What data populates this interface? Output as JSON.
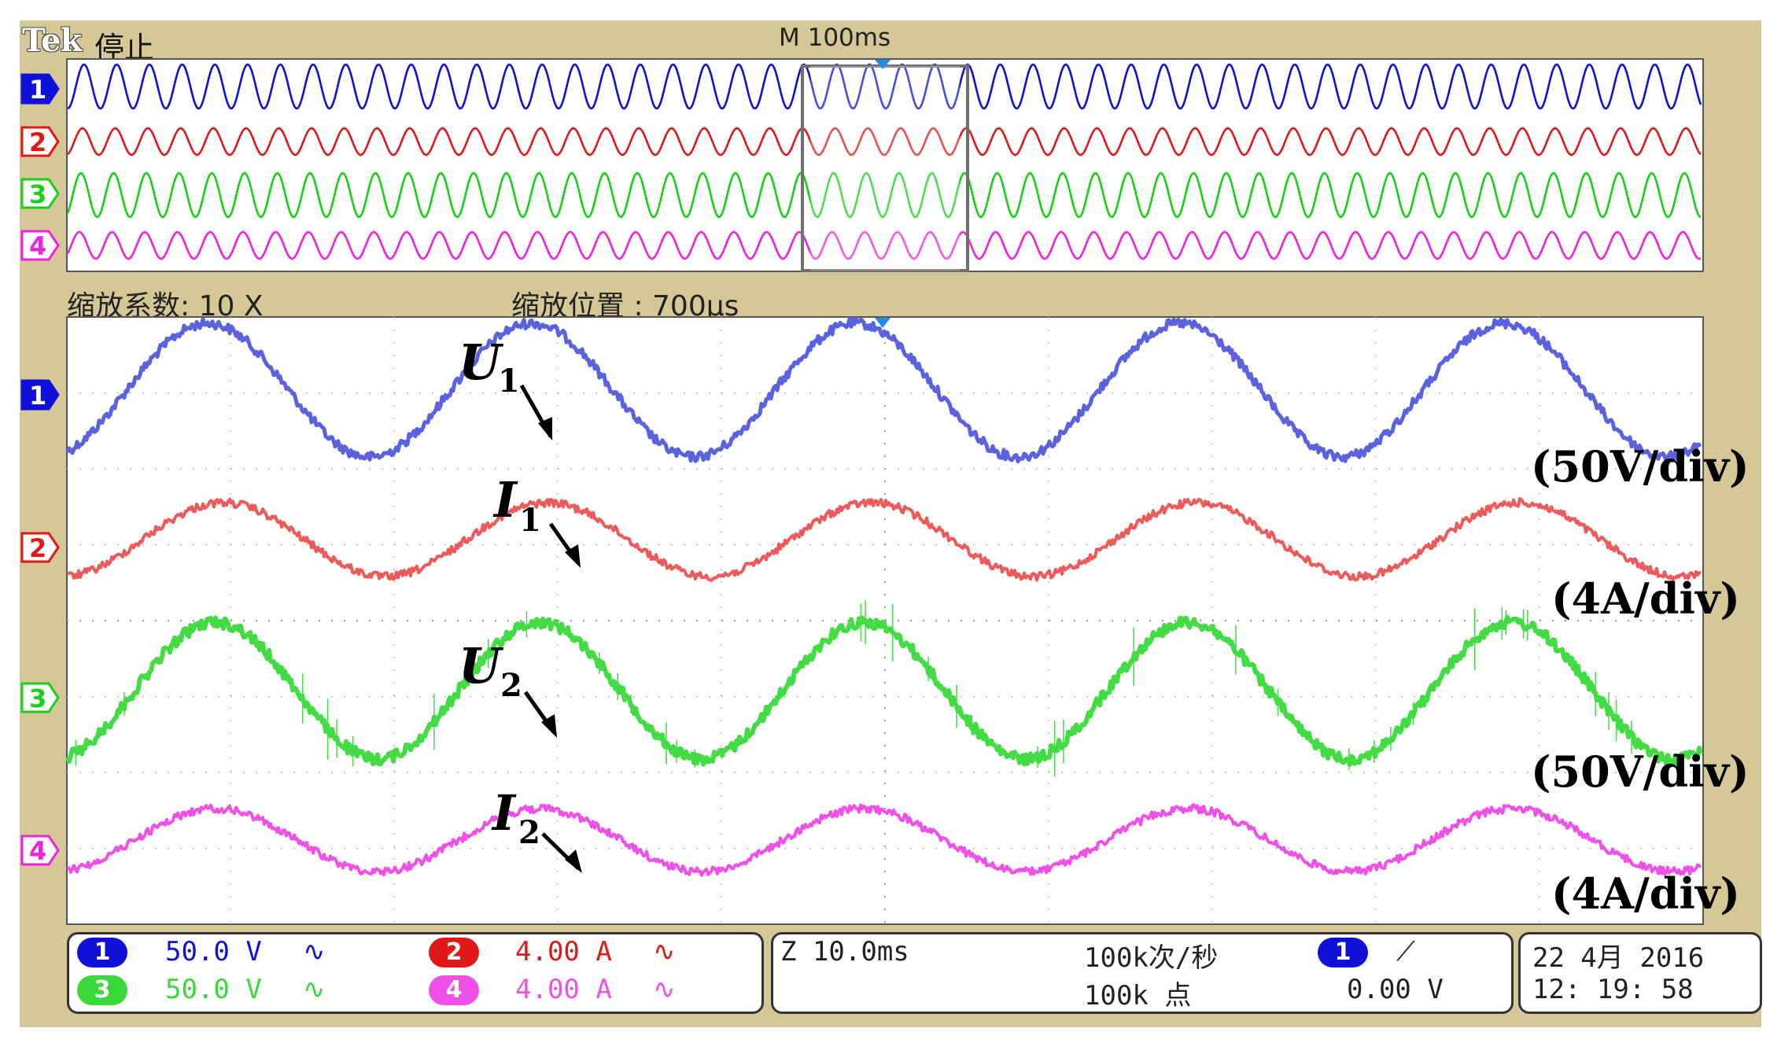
{
  "header": {
    "brand": "Tek",
    "run_state": "停止",
    "timebase": "M 100ms",
    "zoom_factor": "缩放系数: 10 X",
    "zoom_position": "缩放位置 :  700μs"
  },
  "channels": [
    {
      "id": "1",
      "color": "#1010d8",
      "zoom_color": "#5a62e0",
      "scale": "50.0 V",
      "coupling": "∿"
    },
    {
      "id": "2",
      "color": "#e01818",
      "zoom_color": "#ee5a5a",
      "scale": "4.00 A",
      "coupling": "∿"
    },
    {
      "id": "3",
      "color": "#18d018",
      "zoom_color": "#44dc44",
      "scale": "50.0 V",
      "coupling": "∿"
    },
    {
      "id": "4",
      "color": "#f020e0",
      "zoom_color": "#f050e8",
      "scale": "4.00 A",
      "coupling": "∿"
    }
  ],
  "annotations": {
    "u1": {
      "main": "U",
      "sub": "1"
    },
    "i1": {
      "main": "I",
      "sub": "1"
    },
    "u2": {
      "main": "U",
      "sub": "2"
    },
    "i2": {
      "main": "I",
      "sub": "2"
    },
    "scale_u1": "(50V/div)",
    "scale_i1": "(4A/div)",
    "scale_u2": "(50V/div)",
    "scale_i2": "(4A/div)"
  },
  "status_bar": {
    "zoom_time": "Z 10.0ms",
    "sample_rate": "100k次/秒",
    "record_length": "100k 点",
    "trigger_channel": "1",
    "trigger_slope": "⟋",
    "trigger_level": "0.00 V",
    "date": "22 4月   2016",
    "time": "12: 19: 58"
  }
}
